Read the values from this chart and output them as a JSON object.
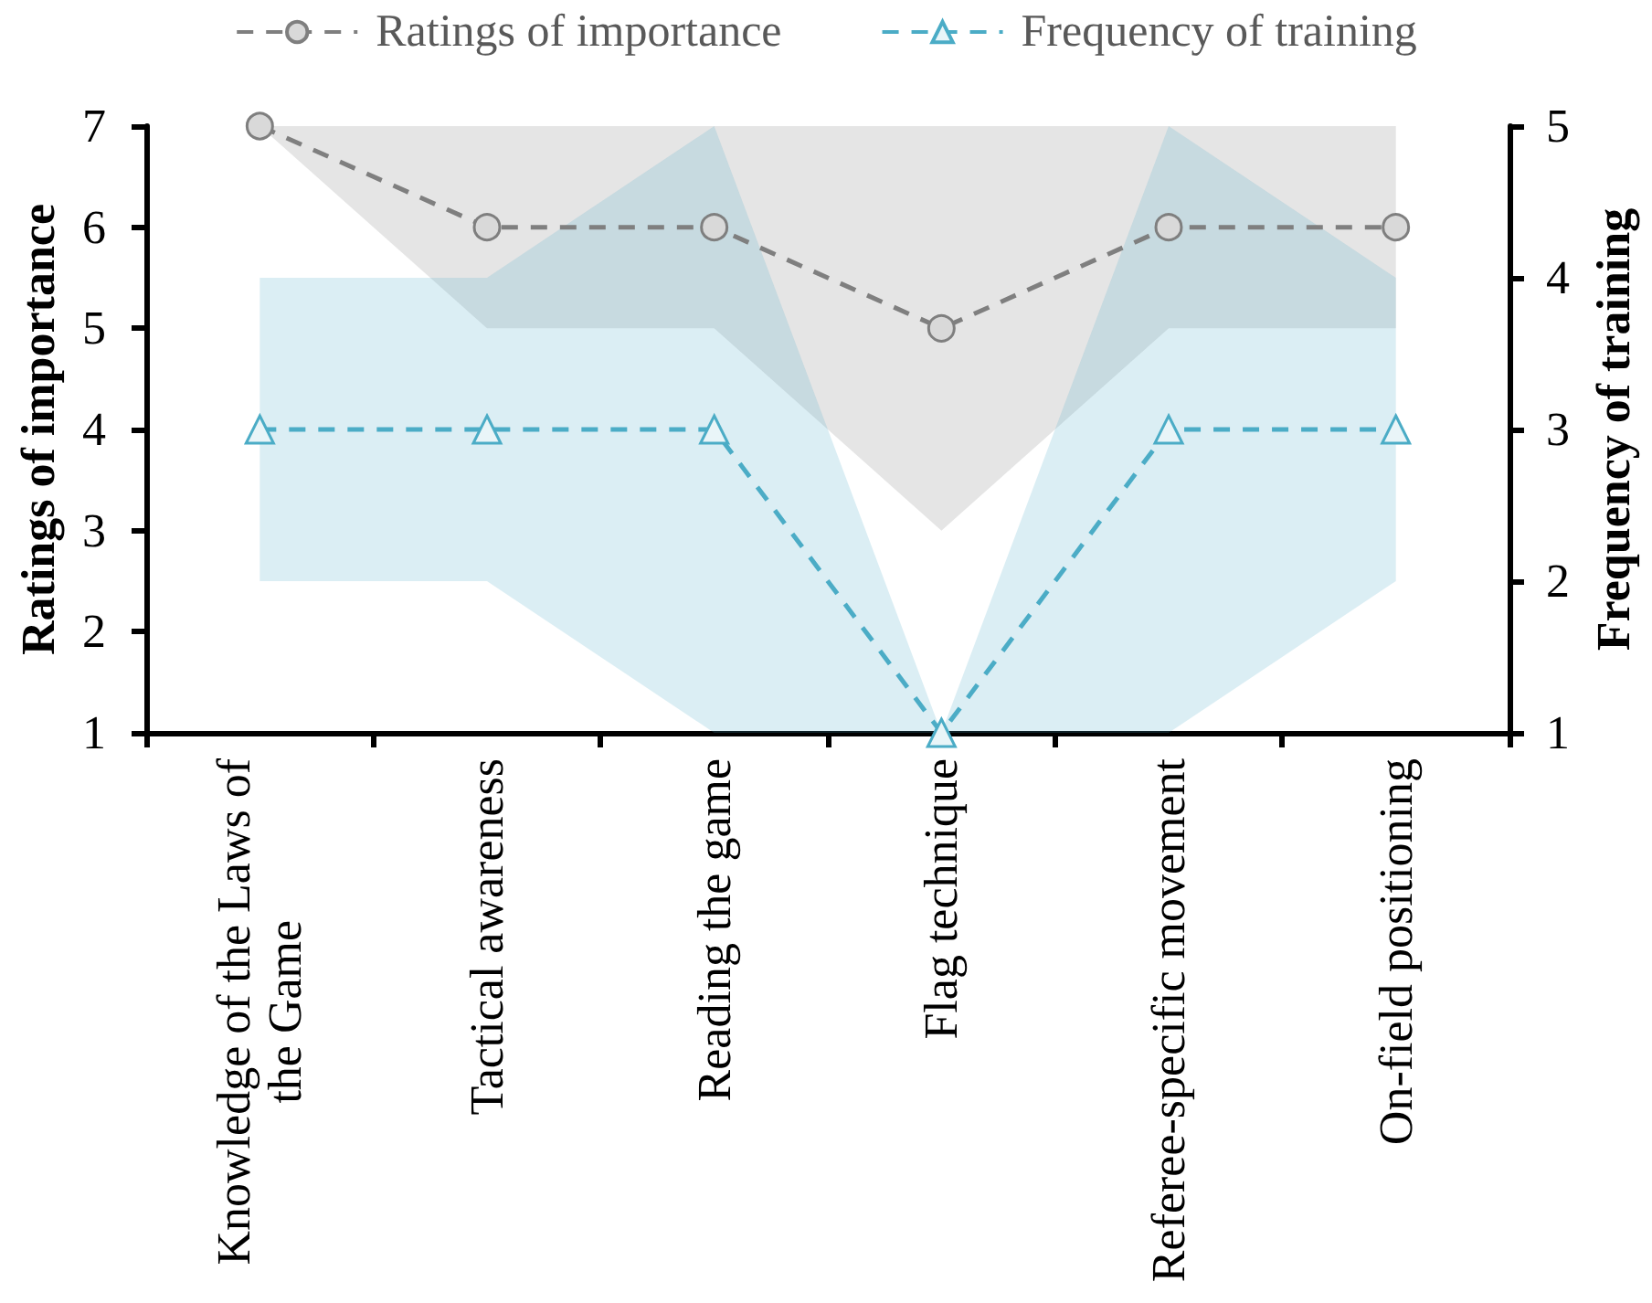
{
  "chart_data": {
    "type": "line",
    "categories": [
      "Knowledge of the Laws of the Game",
      "Tactical awareness",
      "Reading the game",
      "Flag technique",
      "Referee-specific movement",
      "On-field positioning"
    ],
    "ylabel": "Ratings of importance",
    "y2label": "Frequency of training",
    "ylim": [
      1,
      7
    ],
    "yticks": [
      1,
      2,
      3,
      4,
      5,
      6,
      7
    ],
    "y2lim": [
      1,
      5
    ],
    "y2ticks": [
      1,
      2,
      3,
      4,
      5
    ],
    "legend": "top",
    "grid": false,
    "line_style": "dashed",
    "series": [
      {
        "name": "Ratings of importance",
        "color": "#7f7f7f",
        "marker": "circle",
        "values": [
          7,
          6,
          6,
          5,
          6,
          6
        ],
        "lower": [
          7,
          5,
          5,
          3,
          5,
          5
        ],
        "upper": [
          7,
          7,
          7,
          7,
          7,
          7
        ]
      },
      {
        "name": "Frequency of training",
        "color": "#4bacc6",
        "marker": "triangle",
        "axis": "y2",
        "values": [
          3,
          3,
          3,
          1,
          3,
          3
        ],
        "lower": [
          2,
          2,
          1,
          1,
          1,
          2
        ],
        "upper": [
          4,
          4,
          5,
          1,
          5,
          4
        ]
      }
    ]
  }
}
